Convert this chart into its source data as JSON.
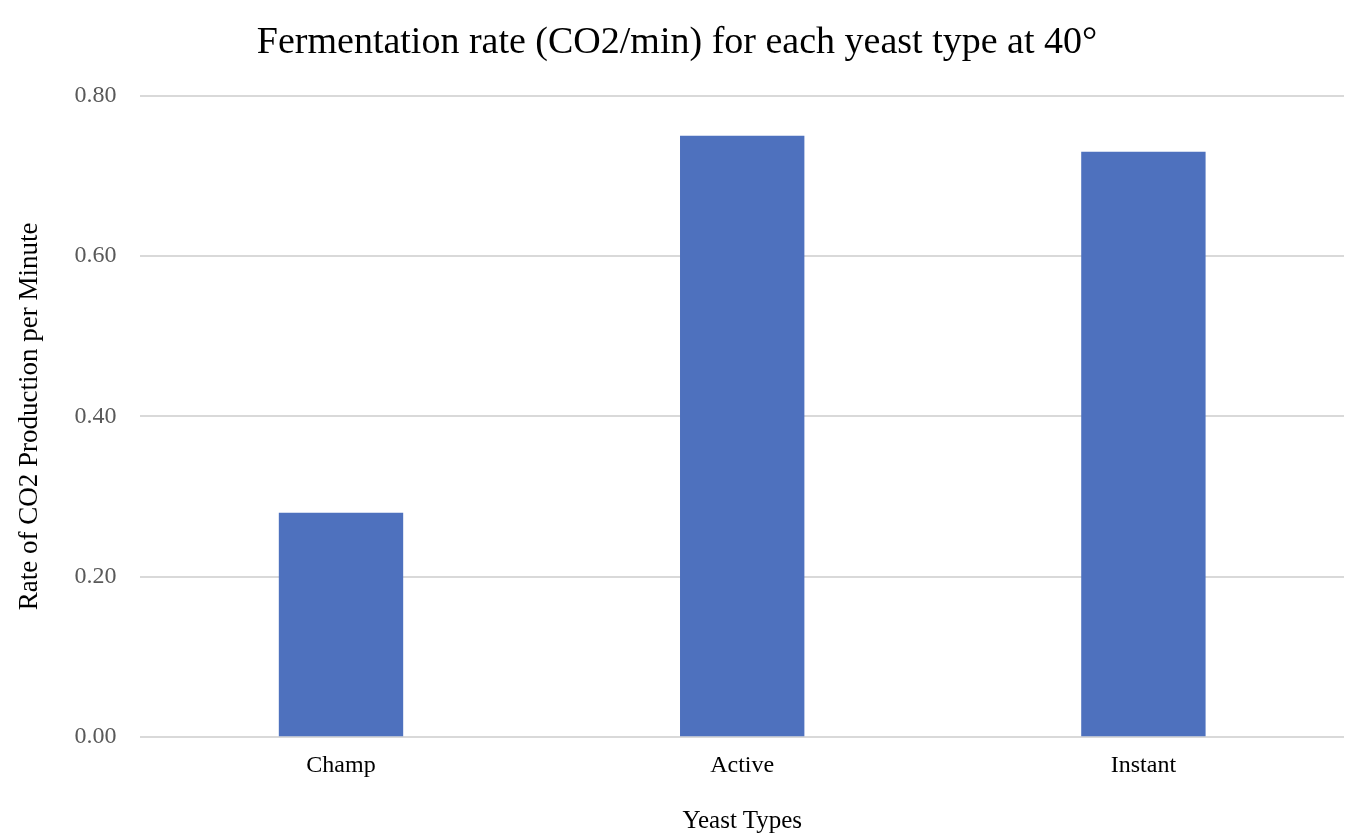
{
  "chart_data": {
    "type": "bar",
    "title": "Fermentation rate (CO2/min) for each yeast type at 40°",
    "xlabel": "Yeast Types",
    "ylabel": "Rate of CO2 Production per Minute",
    "categories": [
      "Champ",
      "Active",
      "Instant"
    ],
    "values": [
      0.28,
      0.75,
      0.73
    ],
    "color": "#4e71be",
    "ylim": [
      0,
      0.8
    ],
    "yticks": [
      {
        "value": 0,
        "label": "0.00"
      },
      {
        "value": 0.2,
        "label": "0.20"
      },
      {
        "value": 0.4,
        "label": "0.40"
      },
      {
        "value": 0.6,
        "label": "0.60"
      },
      {
        "value": 0.8,
        "label": "0.80"
      }
    ],
    "grid": "y"
  }
}
